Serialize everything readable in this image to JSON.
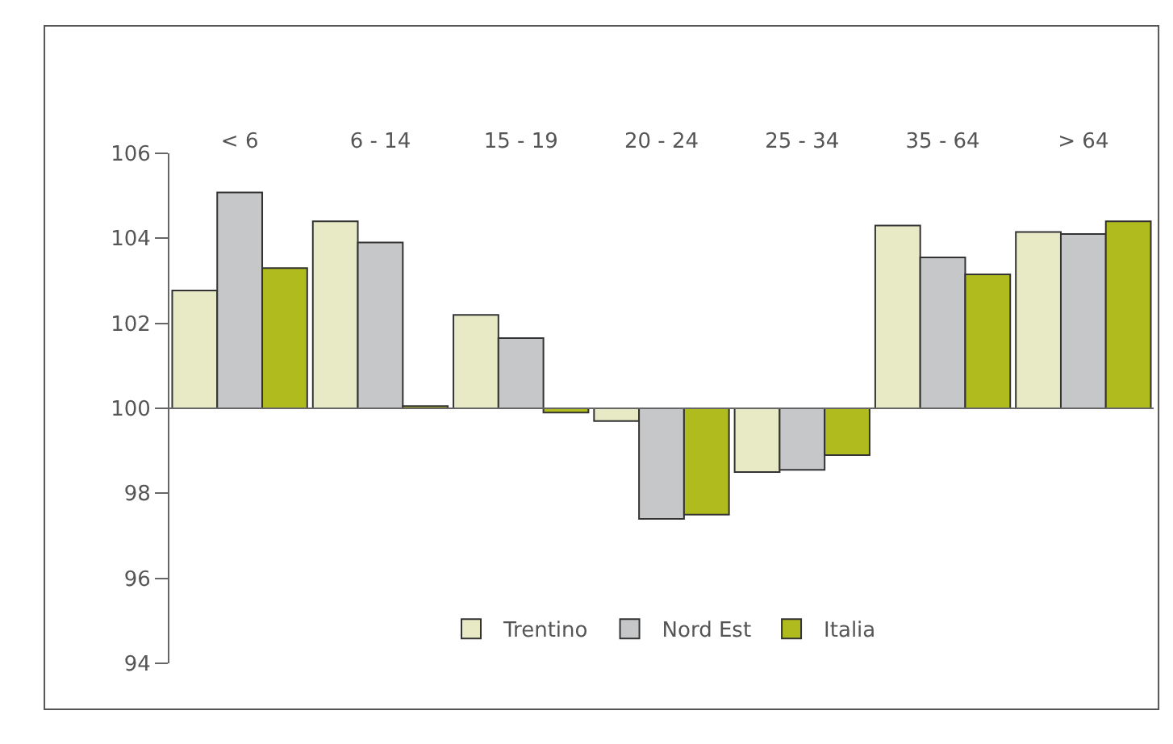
{
  "chart_data": {
    "type": "bar",
    "categories": [
      "< 6",
      "6 - 14",
      "15 - 19",
      "20 - 24",
      "25 - 34",
      "35 - 64",
      "> 64"
    ],
    "series": [
      {
        "name": "Trentino",
        "color": "#e8eac6",
        "base": [
          100,
          100,
          100,
          100,
          100,
          100,
          100
        ],
        "values": [
          2.77,
          4.4,
          2.2,
          -0.3,
          -1.5,
          4.3,
          4.15
        ]
      },
      {
        "name": "Nord Est",
        "color": "#c6c7c9",
        "base": [
          100,
          100,
          100,
          100,
          100,
          100,
          100
        ],
        "values": [
          5.08,
          3.9,
          1.65,
          -2.6,
          -1.45,
          3.55,
          4.1
        ]
      },
      {
        "name": "Italia",
        "color": "#b0bb1e",
        "base": [
          100,
          100,
          100,
          100,
          100,
          100,
          100
        ],
        "values": [
          3.3,
          0.05,
          -0.1,
          -2.5,
          -1.1,
          3.15,
          4.4
        ]
      }
    ],
    "ylim": [
      94,
      106
    ],
    "yticks": [
      94,
      96,
      98,
      100,
      102,
      104,
      106
    ],
    "ref_lines": [
      {
        "axis": "y",
        "value": 100,
        "color": "#666666"
      }
    ],
    "legend": "bottom"
  }
}
